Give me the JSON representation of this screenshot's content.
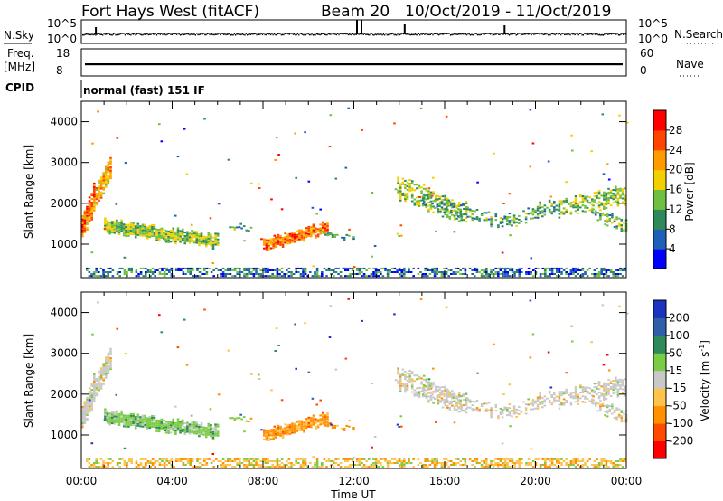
{
  "header": {
    "station": "Fort Hays West (fitACF)",
    "beam": "Beam 20",
    "dates": "10/Oct/2019 - 11/Oct/2019"
  },
  "top_panels": {
    "nsky_label": "N.Sky",
    "nsky_ticks": [
      "10^5",
      "10^0"
    ],
    "nsearch_label": "N.Search",
    "nsearch_ticks": [
      "10^5",
      "10^0"
    ],
    "freq_label": "Freq.",
    "freq_unit": "[MHz]",
    "freq_ticks": [
      "18",
      "8"
    ],
    "nave_label": "Nave",
    "nave_ticks": [
      "60",
      "0"
    ],
    "cpid_label": "CPID",
    "mode_text": "normal (fast) 151 IF"
  },
  "chart_data": [
    {
      "type": "heatmap",
      "panel": "power",
      "ylabel": "Slant Range [km]",
      "ylim": [
        180,
        4500
      ],
      "yticks": [
        "4000",
        "3000",
        "2000",
        "1000"
      ],
      "xlim": [
        "00:00",
        "24:00"
      ],
      "xticks": [
        "00:00",
        "04:00",
        "08:00",
        "12:00",
        "16:00",
        "20:00",
        "00:00"
      ],
      "colorbar": {
        "label": "Power [dB]",
        "ticks": [
          "28",
          "24",
          "20",
          "16",
          "12",
          "8",
          "4"
        ],
        "colors": [
          "#0000ff",
          "#1e5fb8",
          "#2f8a5a",
          "#6fbf40",
          "#f2d000",
          "#ff9a00",
          "#ff4400",
          "#ff0000"
        ]
      }
    },
    {
      "type": "heatmap",
      "panel": "velocity",
      "ylabel": "Slant Range [km]",
      "ylim": [
        180,
        4500
      ],
      "yticks": [
        "4000",
        "3000",
        "2000",
        "1000"
      ],
      "xlim": [
        "00:00",
        "24:00"
      ],
      "xticks": [
        "00:00",
        "04:00",
        "08:00",
        "12:00",
        "16:00",
        "20:00",
        "00:00"
      ],
      "xlabel": "Time UT",
      "colorbar": {
        "label": "Velocity [m s^-1]",
        "ticks": [
          "200",
          "100",
          "50",
          "15",
          "-15",
          "-50",
          "-100",
          "-200"
        ],
        "colors": [
          "#ff0000",
          "#ff4a00",
          "#ff9000",
          "#ffc24a",
          "#c8c8c8",
          "#7acc44",
          "#2f8a5a",
          "#2e5fa8",
          "#1a33c0"
        ]
      }
    }
  ]
}
